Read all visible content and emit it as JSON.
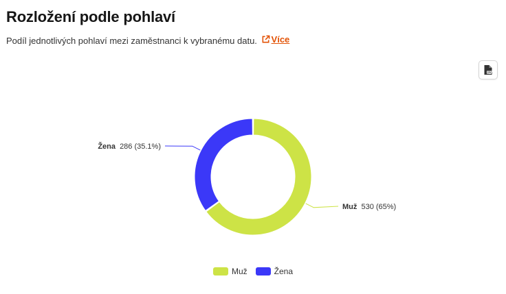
{
  "header": {
    "title": "Rozložení podle pohlaví",
    "description": "Podíl jednotlivých pohlaví mezi zaměstnanci k vybranému datu.",
    "more_link": "Více"
  },
  "toolbar": {
    "export_icon": "jpg-file-icon",
    "export_icon_text": "JPG"
  },
  "chart_data": {
    "type": "pie",
    "title": "",
    "series": [
      {
        "name": "",
        "data": [
          {
            "name": "Muž",
            "value": 530,
            "percent": "65%",
            "color": "#cde346"
          },
          {
            "name": "Žena",
            "value": 286,
            "percent": "35.1%",
            "color": "#3b38f8"
          }
        ]
      }
    ],
    "legend_position": "bottom-center",
    "donut": true
  },
  "labels": {
    "muz": {
      "name": "Muž",
      "detail": "530 (65%)"
    },
    "zena": {
      "name": "Žena",
      "detail": "286 (35.1%)"
    }
  },
  "legend": [
    {
      "label": "Muž",
      "color": "#cde346"
    },
    {
      "label": "Žena",
      "color": "#3b38f8"
    }
  ],
  "colors": {
    "accent": "#e35205"
  }
}
